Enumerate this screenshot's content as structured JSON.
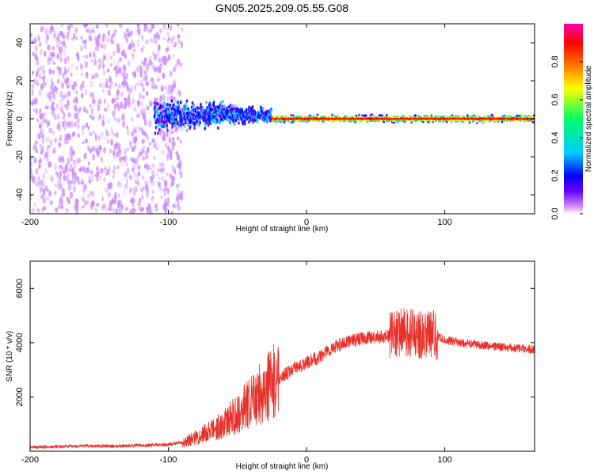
{
  "title": "GN05.2025.209.05.55.G08",
  "chart_data": [
    {
      "type": "heatmap",
      "xlabel": "Height of straight line (km)",
      "ylabel": "Frequency (Hz)",
      "xlim": [
        -200,
        165
      ],
      "ylim": [
        -50,
        50
      ],
      "x_ticks": [
        -200,
        -100,
        0,
        100
      ],
      "y_ticks": [
        -40,
        -20,
        0,
        20,
        40
      ],
      "colorbar": {
        "label": "Normalized spectral amplitude",
        "range": [
          0,
          1
        ],
        "ticks": [
          0.0,
          0.2,
          0.4,
          0.6,
          0.8
        ],
        "colors": [
          "#ffffff",
          "#cc88ff",
          "#6600ff",
          "#0000ff",
          "#00ccff",
          "#00ff66",
          "#ffff00",
          "#ff7700",
          "#ff0000",
          "#ff00aa"
        ]
      },
      "features": {
        "noise_region_x": [
          -200,
          -90
        ],
        "scatter_region_x": [
          -80,
          -60
        ],
        "ridge_start_x": -110,
        "ridge_strong_from_x": -25,
        "ridge_end_x": 165,
        "ridge_frequency": 0
      },
      "grid": false
    },
    {
      "type": "line",
      "xlabel": "Height of straight line (km)",
      "ylabel": "SNR (10 * v/v)",
      "xlim": [
        -200,
        165
      ],
      "ylim": [
        0,
        7000
      ],
      "x_ticks": [
        -200,
        -100,
        0,
        100
      ],
      "y_ticks": [
        2000,
        4000,
        6000
      ],
      "color": "#e8302a",
      "series": [
        {
          "x": [
            -200,
            -180,
            -160,
            -140,
            -120,
            -100,
            -90,
            -80,
            -70,
            -60,
            -50,
            -40,
            -30,
            -20,
            -10,
            0,
            10,
            20,
            30,
            40,
            50,
            60,
            70,
            80,
            90,
            100,
            110,
            120,
            130,
            140,
            150,
            165
          ],
          "values": [
            150,
            170,
            200,
            190,
            210,
            250,
            330,
            500,
            750,
            1000,
            1400,
            1800,
            2300,
            2700,
            3000,
            3250,
            3500,
            3850,
            4050,
            4150,
            4200,
            4250,
            4400,
            4300,
            4350,
            4100,
            4000,
            3950,
            3900,
            3850,
            3800,
            3750
          ]
        }
      ],
      "grid": false
    }
  ]
}
